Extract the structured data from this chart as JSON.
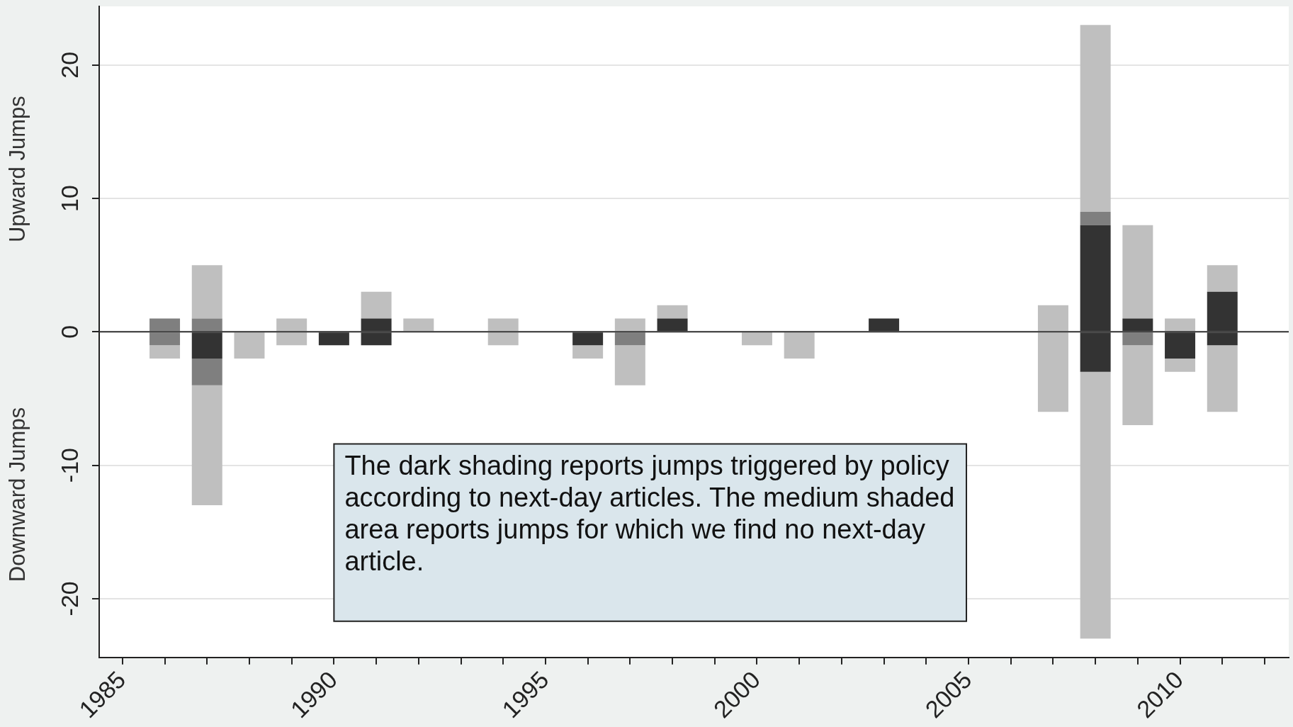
{
  "chart_data": {
    "type": "bar",
    "ylabel": "Upward Jumps",
    "x": [
      1986,
      1987,
      1988,
      1989,
      1990,
      1991,
      1992,
      1994,
      1996,
      1997,
      1998,
      2000,
      2001,
      2003,
      2007,
      2008,
      2009,
      2010,
      2011
    ],
    "series": [
      {
        "color": "#333333",
        "values": [
          null,
          null,
          null,
          null,
          null,
          1,
          null,
          null,
          null,
          null,
          1,
          null,
          null,
          1,
          null,
          8,
          1,
          null,
          3
        ],
        "base": [
          null,
          null,
          null,
          null,
          null,
          0,
          null,
          null,
          null,
          null,
          0,
          null,
          null,
          0,
          null,
          0,
          0,
          null,
          0
        ]
      },
      {
        "color": "#7f7f7f",
        "values": [
          1,
          1,
          null,
          null,
          null,
          null,
          null,
          null,
          null,
          null,
          null,
          null,
          null,
          null,
          null,
          1,
          null,
          null,
          null
        ],
        "base": [
          0,
          0,
          null,
          null,
          null,
          null,
          null,
          null,
          null,
          null,
          null,
          null,
          null,
          null,
          null,
          8,
          null,
          null,
          null
        ]
      },
      {
        "color": "#bfbfbf",
        "values": [
          null,
          4,
          null,
          1,
          null,
          2,
          1,
          1,
          null,
          1,
          1,
          null,
          null,
          null,
          2,
          14,
          7,
          1,
          2
        ],
        "base": [
          null,
          1,
          null,
          0,
          null,
          1,
          0,
          0,
          null,
          0,
          1,
          null,
          null,
          null,
          0,
          9,
          1,
          0,
          3
        ]
      },
      {
        "color": "#333333",
        "values": [
          null,
          -2,
          null,
          null,
          -1,
          -1,
          null,
          null,
          -1,
          null,
          null,
          null,
          null,
          null,
          null,
          -3,
          null,
          -2,
          -1
        ],
        "base": [
          null,
          0,
          null,
          null,
          0,
          0,
          null,
          null,
          0,
          null,
          null,
          null,
          null,
          null,
          null,
          0,
          null,
          0,
          0
        ]
      },
      {
        "color": "#7f7f7f",
        "values": [
          -1,
          -2,
          null,
          null,
          null,
          null,
          null,
          null,
          null,
          -1,
          null,
          null,
          null,
          null,
          null,
          null,
          -1,
          null,
          null
        ],
        "base": [
          0,
          -2,
          null,
          null,
          null,
          null,
          null,
          null,
          null,
          0,
          null,
          null,
          null,
          null,
          null,
          null,
          0,
          null,
          null
        ]
      },
      {
        "color": "#bfbfbf",
        "values": [
          -1,
          -9,
          -2,
          -1,
          null,
          null,
          null,
          -1,
          -1,
          -3,
          null,
          -1,
          -2,
          null,
          -6,
          -20,
          -6,
          -1,
          -5
        ],
        "base": [
          -1,
          -4,
          0,
          0,
          null,
          null,
          null,
          0,
          -1,
          -1,
          null,
          0,
          0,
          null,
          0,
          -3,
          -1,
          -2,
          -1
        ]
      }
    ],
    "xlim": [
      1984.45,
      2012.57
    ],
    "xticks": [
      1985,
      {
        "value": 1986,
        "label": null
      },
      {
        "value": 1987,
        "label": null
      },
      {
        "value": 1988,
        "label": null
      },
      {
        "value": 1989,
        "label": null
      },
      1990,
      {
        "value": 1991,
        "label": null
      },
      {
        "value": 1992,
        "label": null
      },
      {
        "value": 1993,
        "label": null
      },
      {
        "value": 1994,
        "label": null
      },
      1995,
      {
        "value": 1996,
        "label": null
      },
      {
        "value": 1997,
        "label": null
      },
      {
        "value": 1998,
        "label": null
      },
      {
        "value": 1999,
        "label": null
      },
      2000,
      {
        "value": 2001,
        "label": null
      },
      {
        "value": 2002,
        "label": null
      },
      {
        "value": 2003,
        "label": null
      },
      {
        "value": 2004,
        "label": null
      },
      2005,
      {
        "value": 2006,
        "label": null
      },
      {
        "value": 2007,
        "label": null
      },
      {
        "value": 2008,
        "label": null
      },
      {
        "value": 2009,
        "label": null
      },
      2010,
      {
        "value": 2011,
        "label": null
      },
      {
        "value": 2012,
        "label": null
      }
    ],
    "ylim": [
      -24.4,
      24.4
    ],
    "yticks": [
      -20,
      -10,
      0,
      10,
      20
    ],
    "grid": "y",
    "legend": false,
    "ref_lines": [
      {
        "axis": "y",
        "value": 0,
        "color": "#333333"
      }
    ],
    "annotations": [
      "Downward Jumps",
      "The dark shading reports jumps triggered by policy according to next-day articles. The medium shaded area reports jumps for which we find no next-day article."
    ]
  }
}
